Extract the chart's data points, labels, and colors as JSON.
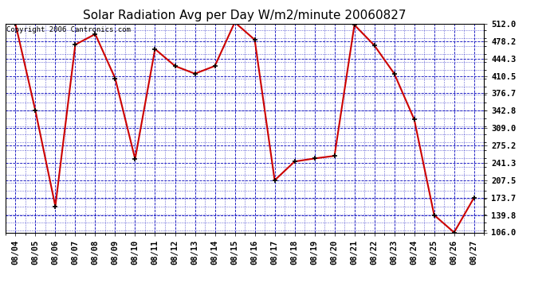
{
  "title": "Solar Radiation Avg per Day W/m2/minute 20060827",
  "copyright": "Copyright 2006 Cantronics.com",
  "dates": [
    "08/04",
    "08/05",
    "08/06",
    "08/07",
    "08/08",
    "08/09",
    "08/10",
    "08/11",
    "08/12",
    "08/13",
    "08/14",
    "08/15",
    "08/16",
    "08/17",
    "08/18",
    "08/19",
    "08/20",
    "08/21",
    "08/22",
    "08/23",
    "08/24",
    "08/25",
    "08/26",
    "08/27"
  ],
  "values": [
    512.0,
    342.8,
    157.0,
    471.5,
    492.0,
    406.0,
    249.0,
    463.0,
    430.0,
    415.0,
    430.0,
    515.0,
    481.0,
    207.5,
    244.0,
    250.0,
    255.0,
    510.0,
    470.0,
    415.0,
    326.0,
    139.8,
    106.0,
    173.7
  ],
  "ylim": [
    106.0,
    512.0
  ],
  "yticks": [
    512.0,
    478.2,
    444.3,
    410.5,
    376.7,
    342.8,
    309.0,
    275.2,
    241.3,
    207.5,
    173.7,
    139.8,
    106.0
  ],
  "line_color": "#cc0000",
  "marker": "+",
  "marker_color": "#000000",
  "bg_color": "#ffffff",
  "plot_bg_color": "#ffffff",
  "grid_color": "#0000bb",
  "title_fontsize": 11,
  "tick_fontsize": 7.5,
  "copyright_fontsize": 6.5
}
